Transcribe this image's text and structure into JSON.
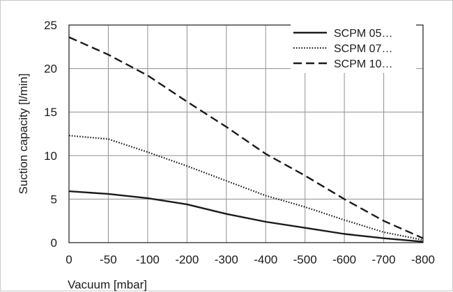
{
  "chart_data": {
    "type": "line",
    "title": "",
    "xlabel": "Vacuum [mbar]",
    "ylabel": "Suction capacity [l/min]",
    "x_categories": [
      "0",
      "-50",
      "-100",
      "-200",
      "-300",
      "-400",
      "-500",
      "-600",
      "-700",
      "-800"
    ],
    "x": [
      0,
      -50,
      -100,
      -200,
      -300,
      -400,
      -500,
      -600,
      -700,
      -800
    ],
    "y_ticks": [
      "0",
      "5",
      "10",
      "15",
      "20",
      "25"
    ],
    "ylim": [
      0,
      25
    ],
    "grid": true,
    "legend_position": "top-right",
    "series": [
      {
        "name": "SCPM 05…",
        "style": "solid",
        "color": "#1a1a1a",
        "values": [
          5.9,
          5.6,
          5.1,
          4.4,
          3.3,
          2.4,
          1.7,
          1.0,
          0.5,
          0.1
        ]
      },
      {
        "name": "SCPM 07…",
        "style": "dotted",
        "color": "#1a1a1a",
        "values": [
          12.3,
          11.9,
          10.4,
          8.8,
          7.1,
          5.4,
          4.1,
          2.6,
          1.2,
          0.3
        ]
      },
      {
        "name": "SCPM 10…",
        "style": "dashed",
        "color": "#1a1a1a",
        "values": [
          23.6,
          21.6,
          19.2,
          16.2,
          13.3,
          10.2,
          7.7,
          5.0,
          2.5,
          0.5
        ]
      }
    ]
  }
}
